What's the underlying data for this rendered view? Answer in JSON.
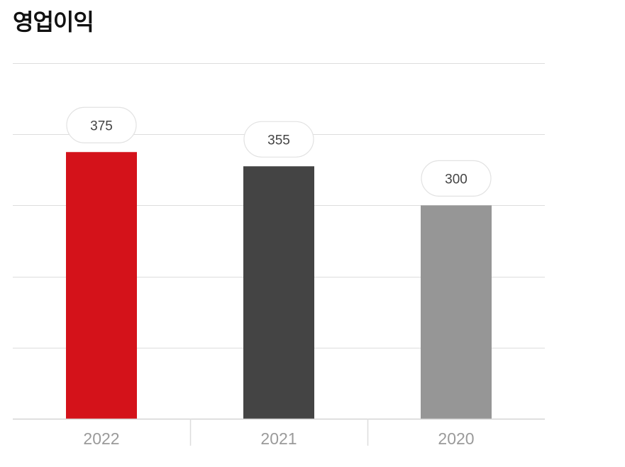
{
  "chart_data": {
    "type": "bar",
    "title": "영업이익",
    "categories": [
      "2022",
      "2021",
      "2020"
    ],
    "values": [
      375,
      355,
      300
    ],
    "colors": [
      "#d4121a",
      "#444444",
      "#969696"
    ],
    "ylim": [
      0,
      500
    ],
    "yticks": [
      0,
      100,
      200,
      300,
      400,
      500
    ],
    "grid": true,
    "xlabel": "",
    "ylabel": ""
  }
}
